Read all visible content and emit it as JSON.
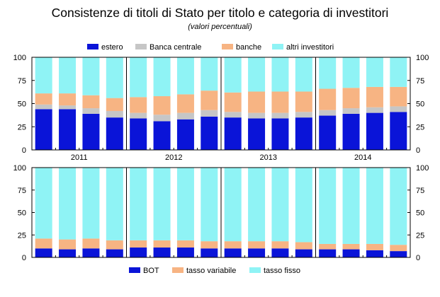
{
  "title": "Consistenze di titoli di Stato per titolo e categoria di investitori",
  "subtitle": "(valori percentuali)",
  "colors": {
    "estero": "#0a14d8",
    "banca_centrale": "#c6c6c6",
    "banche": "#f7b483",
    "altri": "#8ff3f5",
    "bot": "#0a14d8",
    "variabile": "#f7b483",
    "fisso": "#8ff3f5"
  },
  "chart_data": [
    {
      "type": "bar",
      "stacked": true,
      "panel": "top",
      "categories": [
        "2011 T1",
        "2011 T2",
        "2011 T3",
        "2011 T4",
        "2012 T1",
        "2012 T2",
        "2012 T3",
        "2012 T4",
        "2013 T1",
        "2013 T2",
        "2013 T3",
        "2013 T4",
        "2014 T1",
        "2014 T2",
        "2014 T3",
        "2014 T4"
      ],
      "year_labels": [
        "2011",
        "2012",
        "2013",
        "2014"
      ],
      "ylim": [
        0,
        100
      ],
      "yticks": [
        "0",
        "25",
        "50",
        "75",
        "100"
      ],
      "legend": [
        "estero",
        "Banca centrale",
        "banche",
        "altri investitori"
      ],
      "series": [
        {
          "name": "estero",
          "values": [
            44,
            44,
            39,
            35,
            34,
            31,
            33,
            36,
            35,
            34,
            34,
            35,
            37,
            39,
            40,
            41
          ]
        },
        {
          "name": "Banca centrale",
          "values": [
            5,
            4,
            6,
            7,
            6,
            7,
            7,
            7,
            6,
            6,
            6,
            6,
            6,
            6,
            6,
            6
          ]
        },
        {
          "name": "banche",
          "values": [
            12,
            13,
            14,
            14,
            17,
            20,
            20,
            21,
            21,
            23,
            23,
            22,
            23,
            22,
            22,
            21
          ]
        },
        {
          "name": "altri investitori",
          "values": [
            39,
            39,
            41,
            44,
            43,
            42,
            40,
            36,
            38,
            37,
            37,
            37,
            34,
            33,
            32,
            32
          ]
        }
      ]
    },
    {
      "type": "bar",
      "stacked": true,
      "panel": "bottom",
      "categories": [
        "2011 T1",
        "2011 T2",
        "2011 T3",
        "2011 T4",
        "2012 T1",
        "2012 T2",
        "2012 T3",
        "2012 T4",
        "2013 T1",
        "2013 T2",
        "2013 T3",
        "2013 T4",
        "2014 T1",
        "2014 T2",
        "2014 T3",
        "2014 T4"
      ],
      "ylim": [
        0,
        100
      ],
      "yticks": [
        "0",
        "25",
        "50",
        "75",
        "100"
      ],
      "legend": [
        "BOT",
        "tasso variabile",
        "tasso fisso"
      ],
      "series": [
        {
          "name": "BOT",
          "values": [
            10,
            9,
            10,
            9,
            11,
            11,
            11,
            10,
            10,
            10,
            10,
            9,
            9,
            9,
            8,
            7
          ]
        },
        {
          "name": "tasso variabile",
          "values": [
            11,
            11,
            11,
            10,
            8,
            8,
            8,
            8,
            8,
            8,
            8,
            8,
            6,
            6,
            7,
            7
          ]
        },
        {
          "name": "tasso fisso",
          "values": [
            79,
            80,
            79,
            81,
            81,
            81,
            81,
            82,
            82,
            82,
            82,
            83,
            85,
            85,
            85,
            86
          ]
        }
      ]
    }
  ]
}
